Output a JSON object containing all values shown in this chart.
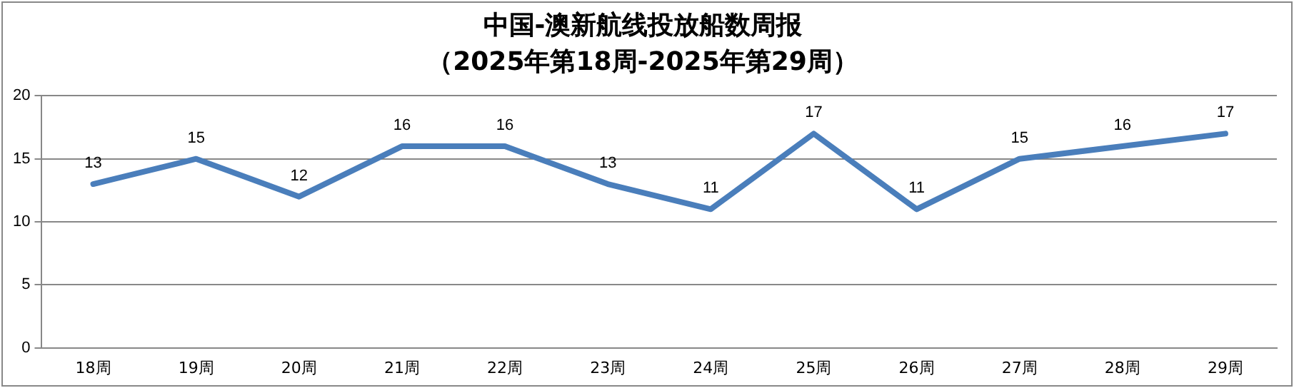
{
  "chart_data": {
    "type": "line",
    "title": "中国-澳新航线投放船数周报",
    "subtitle": "（2025年第18周-2025年第29周）",
    "categories": [
      "18周",
      "19周",
      "20周",
      "21周",
      "22周",
      "23周",
      "24周",
      "25周",
      "26周",
      "27周",
      "28周",
      "29周"
    ],
    "series": [
      {
        "color": "#4a7ebb",
        "values": [
          13,
          15,
          12,
          16,
          16,
          13,
          11,
          17,
          11,
          15,
          16,
          17
        ]
      }
    ],
    "ylim": [
      0,
      20
    ],
    "yticks": [
      0,
      5,
      10,
      15,
      20
    ],
    "grid": "y",
    "legend": false,
    "marker": "none",
    "line_style": "solid",
    "data_labels": true
  }
}
